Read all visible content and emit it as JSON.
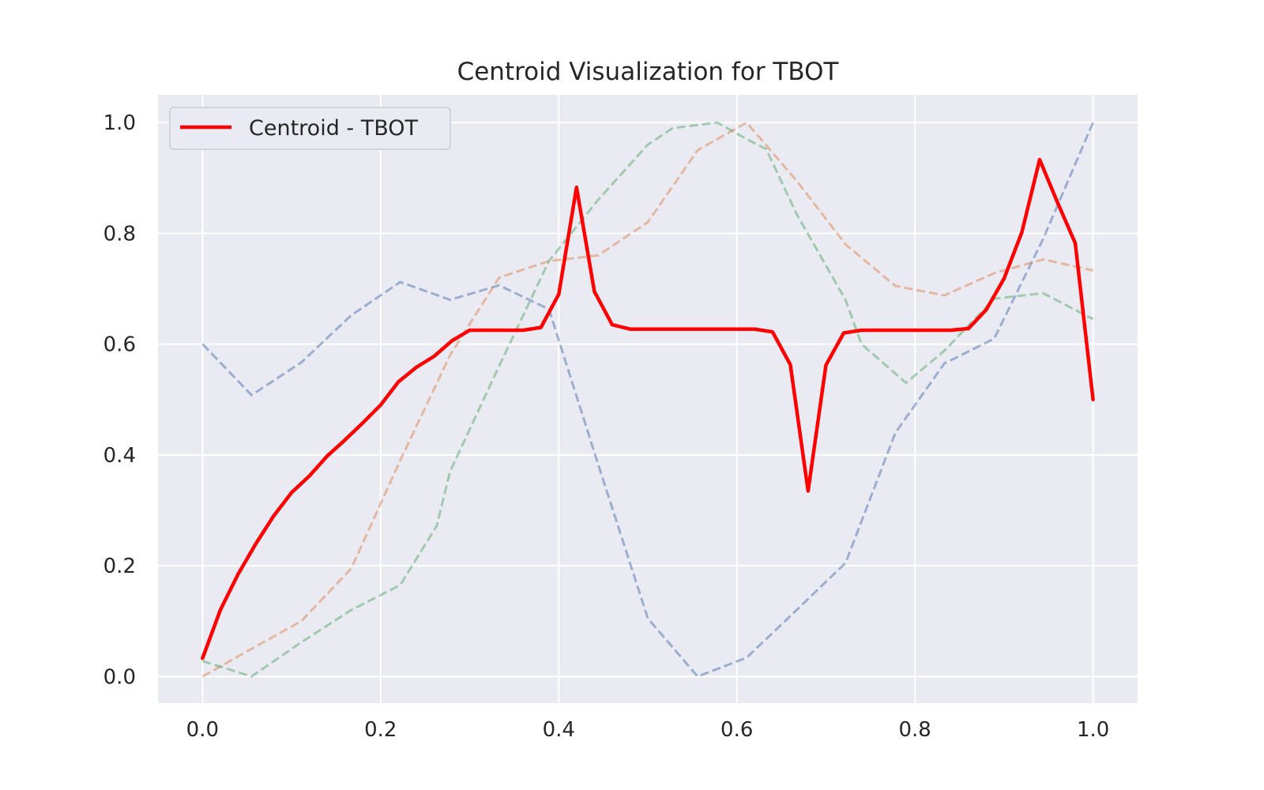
{
  "chart_data": {
    "type": "line",
    "title": "Centroid Visualization for TBOT",
    "xlabel": "",
    "ylabel": "",
    "xlim": [
      -0.05,
      1.05
    ],
    "ylim": [
      -0.048,
      1.05
    ],
    "xticks": [
      0.0,
      0.2,
      0.4,
      0.6,
      0.8,
      1.0
    ],
    "xtick_labels": [
      "0.0",
      "0.2",
      "0.4",
      "0.6",
      "0.8",
      "1.0"
    ],
    "yticks": [
      0.0,
      0.2,
      0.4,
      0.6,
      0.8,
      1.0
    ],
    "ytick_labels": [
      "0.0",
      "0.2",
      "0.4",
      "0.6",
      "0.8",
      "1.0"
    ],
    "grid": true,
    "legend": {
      "position": "top-left",
      "entries": [
        "Centroid - TBOT"
      ]
    },
    "background_color": "#eaeaf2",
    "series": [
      {
        "name": "Centroid - TBOT",
        "color": "#ff0000",
        "style": "solid",
        "x": [
          0.0,
          0.02,
          0.04,
          0.06,
          0.08,
          0.1,
          0.12,
          0.14,
          0.16,
          0.18,
          0.2,
          0.22,
          0.24,
          0.26,
          0.28,
          0.3,
          0.32,
          0.34,
          0.36,
          0.38,
          0.4,
          0.42,
          0.44,
          0.46,
          0.48,
          0.5,
          0.52,
          0.54,
          0.56,
          0.58,
          0.6,
          0.62,
          0.64,
          0.66,
          0.68,
          0.7,
          0.72,
          0.74,
          0.76,
          0.78,
          0.8,
          0.82,
          0.84,
          0.86,
          0.88,
          0.9,
          0.92,
          0.94,
          0.96,
          0.98,
          1.0
        ],
        "y": [
          0.033,
          0.12,
          0.185,
          0.24,
          0.29,
          0.332,
          0.362,
          0.398,
          0.427,
          0.458,
          0.49,
          0.532,
          0.558,
          0.578,
          0.606,
          0.625,
          0.625,
          0.625,
          0.625,
          0.63,
          0.69,
          0.883,
          0.695,
          0.635,
          0.627,
          0.627,
          0.627,
          0.627,
          0.627,
          0.627,
          0.627,
          0.627,
          0.622,
          0.563,
          0.335,
          0.562,
          0.62,
          0.625,
          0.625,
          0.625,
          0.625,
          0.625,
          0.625,
          0.628,
          0.662,
          0.718,
          0.802,
          0.933,
          0.856,
          0.782,
          0.5
        ]
      },
      {
        "color": "#4c72b0",
        "style": "dashed",
        "x": [
          0.0,
          0.055,
          0.111,
          0.167,
          0.222,
          0.278,
          0.333,
          0.389,
          0.444,
          0.5,
          0.556,
          0.611,
          0.667,
          0.722,
          0.778,
          0.833,
          0.889,
          0.944,
          1.0
        ],
        "y": [
          0.6,
          0.508,
          0.567,
          0.652,
          0.712,
          0.68,
          0.706,
          0.663,
          0.384,
          0.105,
          0.0,
          0.034,
          0.12,
          0.205,
          0.44,
          0.565,
          0.61,
          0.79,
          1.0
        ]
      },
      {
        "color": "#dd8452",
        "style": "dashed",
        "x": [
          0.0,
          0.055,
          0.111,
          0.167,
          0.222,
          0.278,
          0.333,
          0.389,
          0.444,
          0.5,
          0.556,
          0.611,
          0.667,
          0.722,
          0.778,
          0.833,
          0.889,
          0.944,
          1.0
        ],
        "y": [
          0.0,
          0.05,
          0.1,
          0.195,
          0.39,
          0.58,
          0.72,
          0.75,
          0.76,
          0.82,
          0.95,
          1.0,
          0.895,
          0.78,
          0.705,
          0.688,
          0.728,
          0.753,
          0.733
        ]
      },
      {
        "color": "#55a868",
        "style": "dashed",
        "x": [
          0.0,
          0.055,
          0.111,
          0.167,
          0.222,
          0.263,
          0.278,
          0.333,
          0.389,
          0.444,
          0.5,
          0.528,
          0.578,
          0.611,
          0.633,
          0.667,
          0.722,
          0.74,
          0.79,
          0.833,
          0.889,
          0.944,
          1.0
        ],
        "y": [
          0.028,
          0.0,
          0.062,
          0.12,
          0.165,
          0.272,
          0.37,
          0.56,
          0.75,
          0.86,
          0.96,
          0.99,
          1.0,
          0.97,
          0.952,
          0.835,
          0.68,
          0.6,
          0.53,
          0.588,
          0.682,
          0.692,
          0.645
        ]
      }
    ]
  }
}
